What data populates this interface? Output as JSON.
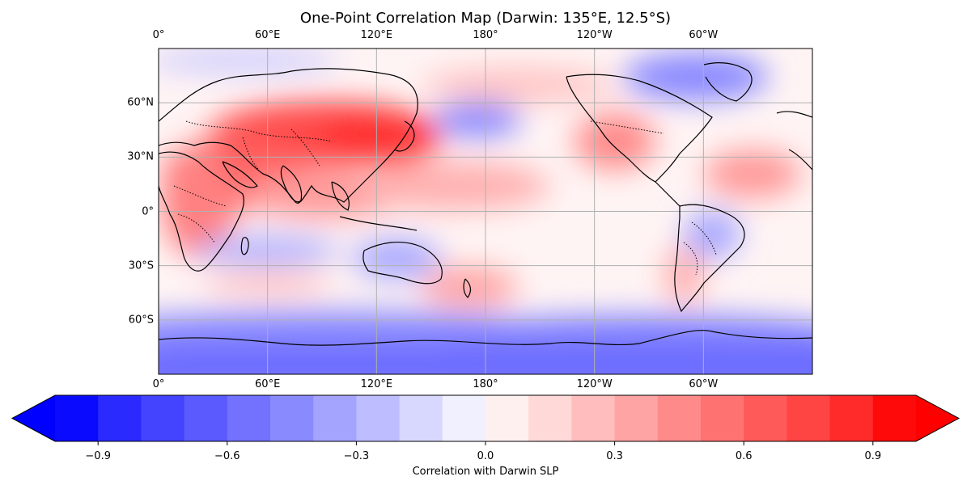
{
  "title": "One-Point Correlation Map (Darwin: 135°E, 12.5°S)",
  "map": {
    "lon_ticks": [
      "0°",
      "60°E",
      "120°E",
      "180°",
      "120°W",
      "60°W"
    ],
    "lat_ticks": [
      "60°N",
      "30°N",
      "0°",
      "30°S",
      "60°S"
    ],
    "grid": true,
    "projection": "PlateCarree, central longitude 180° offset (0°–360°)",
    "features": [
      "coastlines",
      "country-borders-dotted",
      "gridlines"
    ]
  },
  "chart_data": {
    "type": "heatmap",
    "title": "One-Point Correlation Map (Darwin: 135°E, 12.5°S)",
    "x_range": [
      0,
      360
    ],
    "y_range": [
      -90,
      90
    ],
    "value_range": [
      -1,
      1
    ],
    "regions": [
      {
        "lon": 90,
        "lat": 35,
        "value": 0.8
      },
      {
        "lon": 135,
        "lat": 35,
        "value": 0.85
      },
      {
        "lon": 60,
        "lat": 30,
        "value": 0.75
      },
      {
        "lon": 20,
        "lat": 10,
        "value": 0.6
      },
      {
        "lon": 240,
        "lat": 35,
        "value": 0.5
      },
      {
        "lon": 175,
        "lat": 52,
        "value": -0.5
      },
      {
        "lon": 290,
        "lat": 70,
        "value": -0.5
      },
      {
        "lon": 40,
        "lat": -22,
        "value": -0.4
      },
      {
        "lon": 120,
        "lat": -30,
        "value": -0.4
      },
      {
        "lon": 180,
        "lat": -75,
        "value": -0.5
      },
      {
        "lon": 170,
        "lat": -40,
        "value": 0.5
      },
      {
        "lon": 340,
        "lat": 20,
        "value": 0.4
      }
    ]
  },
  "colorbar": {
    "label": "Correlation with Darwin SLP",
    "ticks": [
      "−0.9",
      "−0.6",
      "−0.3",
      "0.0",
      "0.3",
      "0.6",
      "0.9"
    ],
    "tick_values": [
      -0.9,
      -0.6,
      -0.3,
      0.0,
      0.3,
      0.6,
      0.9
    ],
    "levels": [
      -1.0,
      -0.9,
      -0.8,
      -0.7,
      -0.6,
      -0.5,
      -0.4,
      -0.3,
      -0.2,
      -0.1,
      0.0,
      0.1,
      0.2,
      0.3,
      0.4,
      0.5,
      0.6,
      0.7,
      0.8,
      0.9,
      1.0
    ],
    "colors": [
      "#0a0aff",
      "#2a2aff",
      "#4444ff",
      "#5a5aff",
      "#7272ff",
      "#8a8aff",
      "#a4a4ff",
      "#bdbdff",
      "#d8d8ff",
      "#f0f0ff",
      "#fff0f0",
      "#ffd8d8",
      "#ffbdbd",
      "#ffa4a4",
      "#ff8a8a",
      "#ff7272",
      "#ff5a5a",
      "#ff4444",
      "#ff2a2a",
      "#ff0a0a"
    ],
    "under_color": "#0000ff",
    "over_color": "#ff0000",
    "extend": "both"
  }
}
